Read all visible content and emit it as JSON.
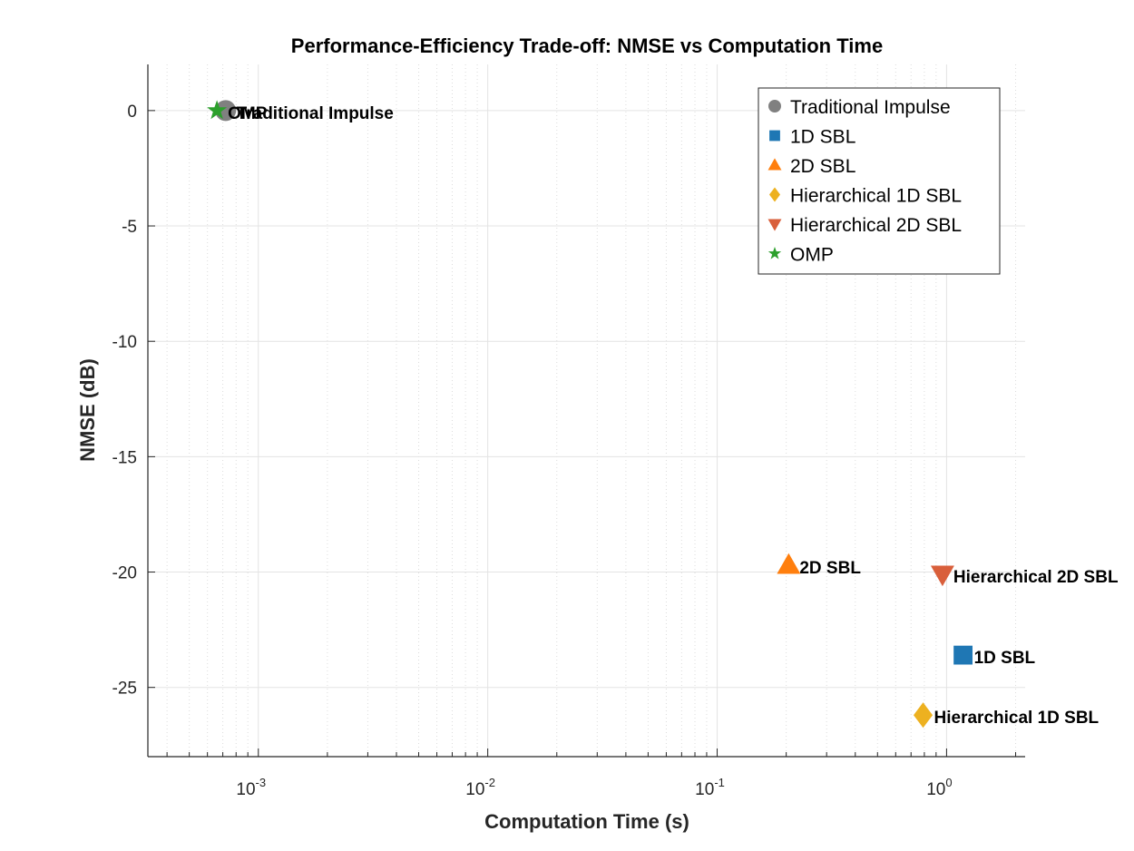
{
  "chart_data": {
    "type": "scatter",
    "title": "Performance-Efficiency Trade-off: NMSE vs Computation Time",
    "xlabel": "Computation Time (s)",
    "ylabel": "NMSE (dB)",
    "xscale": "log",
    "xlim": [
      0.00033,
      2.2
    ],
    "ylim": [
      -28,
      2
    ],
    "grid": true,
    "legend_position": "top-right",
    "x_ticks": [
      {
        "base": "10",
        "exp": "-3",
        "value": 0.001
      },
      {
        "base": "10",
        "exp": "-2",
        "value": 0.01
      },
      {
        "base": "10",
        "exp": "-1",
        "value": 0.1
      },
      {
        "base": "10",
        "exp": "0",
        "value": 1
      }
    ],
    "y_ticks": [
      {
        "label": "0",
        "value": 0
      },
      {
        "label": "-5",
        "value": -5
      },
      {
        "label": "-10",
        "value": -10
      },
      {
        "label": "-15",
        "value": -15
      },
      {
        "label": "-20",
        "value": -20
      },
      {
        "label": "-25",
        "value": -25
      }
    ],
    "series": [
      {
        "name": "Traditional Impulse",
        "marker": "circle",
        "color": "#808080",
        "x": 0.00072,
        "y": 0.0,
        "label": "Traditional Impulse"
      },
      {
        "name": "1D SBL",
        "marker": "square",
        "color": "#1f77b4",
        "x": 1.18,
        "y": -23.6,
        "label": "1D SBL"
      },
      {
        "name": "2D SBL",
        "marker": "triangle-up",
        "color": "#ff7f0e",
        "x": 0.205,
        "y": -19.7,
        "label": "2D SBL"
      },
      {
        "name": "Hierarchical 1D SBL",
        "marker": "diamond",
        "color": "#edb120",
        "x": 0.79,
        "y": -26.2,
        "label": "Hierarchical 1D SBL"
      },
      {
        "name": "Hierarchical 2D SBL",
        "marker": "triangle-down",
        "color": "#d95f3b",
        "x": 0.96,
        "y": -20.1,
        "label": "Hierarchical 2D SBL"
      },
      {
        "name": "OMP",
        "marker": "star",
        "color": "#2ca02c",
        "x": 0.00066,
        "y": 0.0,
        "label": "OMP"
      }
    ]
  }
}
